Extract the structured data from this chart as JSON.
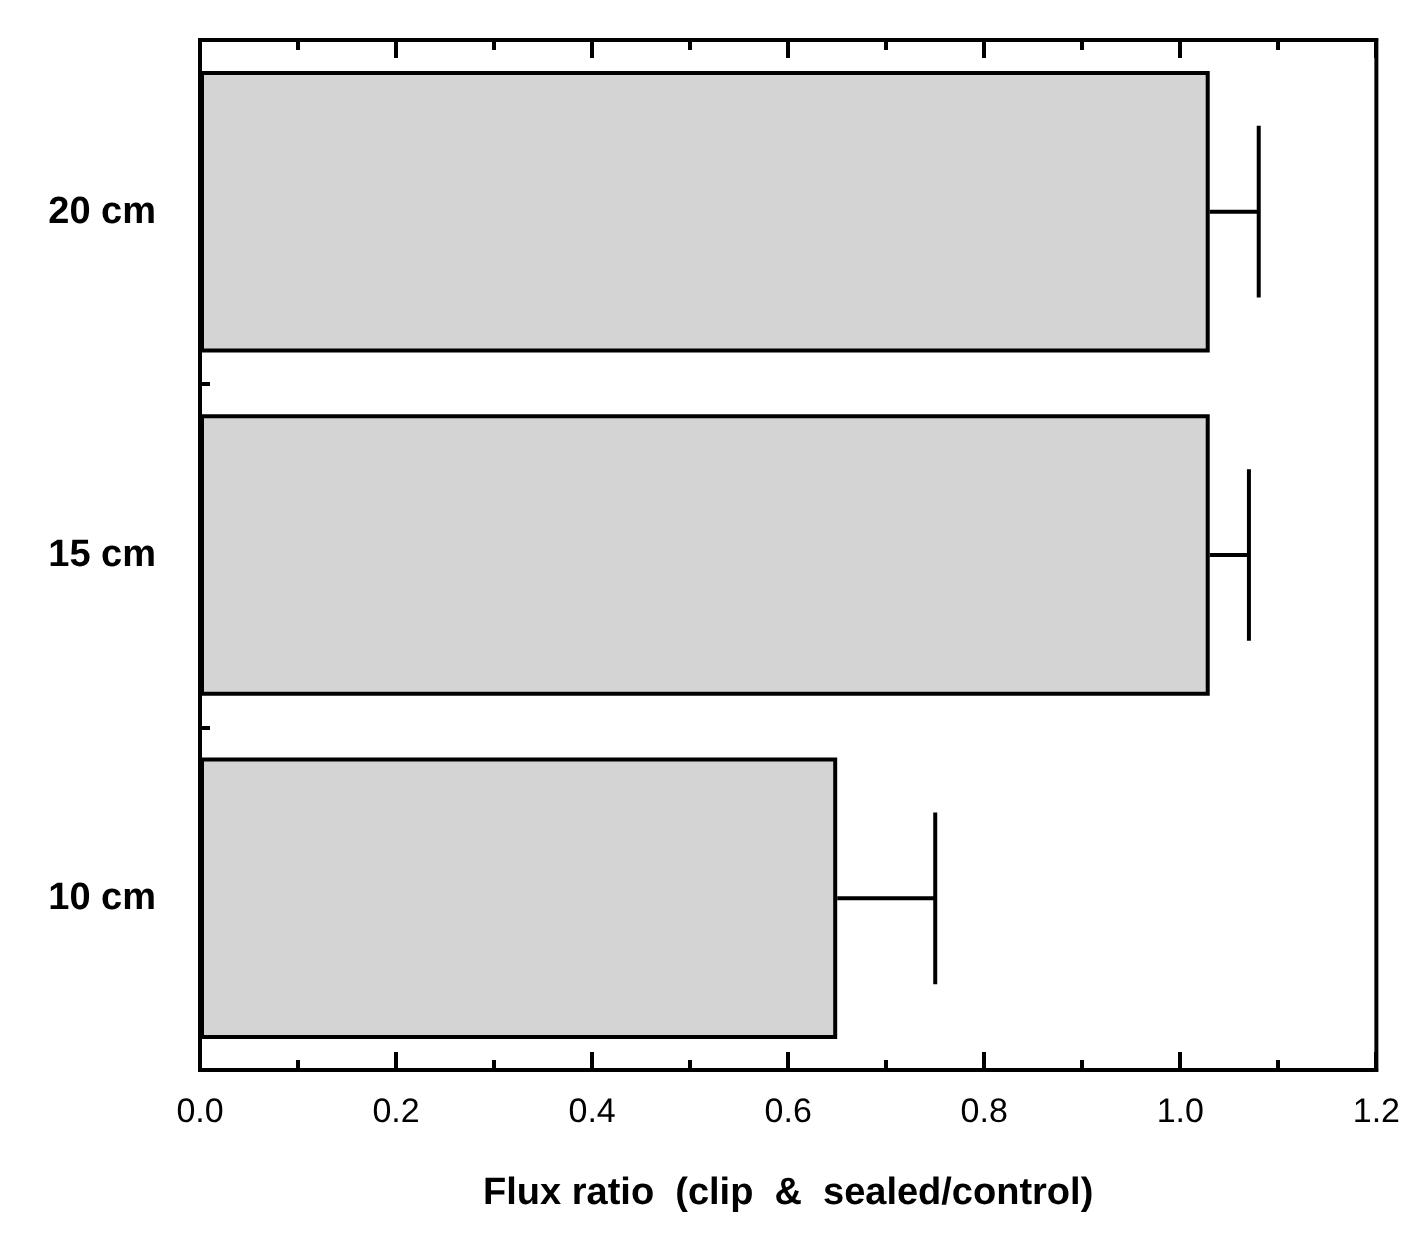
{
  "chart_data": {
    "type": "bar",
    "orientation": "horizontal",
    "xlabel": "Flux ratio  (clip  &  sealed/control)",
    "categories": [
      "20 cm",
      "15 cm",
      "10 cm"
    ],
    "values": [
      1.03,
      1.03,
      0.65
    ],
    "color": "#d4d4d4",
    "errors": [
      [
        1.03,
        1.08
      ],
      [
        1.03,
        1.07
      ],
      [
        0.65,
        0.75
      ]
    ],
    "xlim": [
      0,
      1.2
    ],
    "xticks": [
      {
        "value": 0,
        "label": "0.0"
      },
      0.2,
      0.4,
      0.6,
      0.8,
      {
        "value": 1,
        "label": "1.0"
      },
      1.2
    ],
    "grid": false
  }
}
